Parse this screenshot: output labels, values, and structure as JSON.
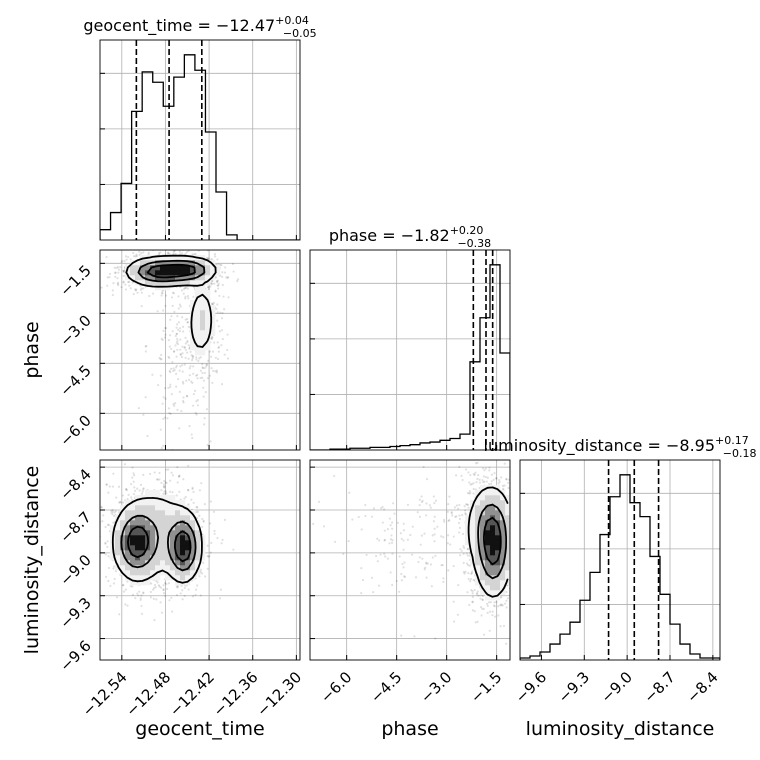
{
  "chart_data": [
    {
      "type": "corner",
      "parameters": [
        "geocent_time",
        "phase",
        "luminosity_distance"
      ],
      "titles": [
        {
          "param": "geocent_time",
          "text": "geocent_time = −12.47",
          "plus": "+0.04",
          "minus": "−0.05"
        },
        {
          "param": "phase",
          "text": "phase = −1.82",
          "plus": "+0.20",
          "minus": "−0.38"
        },
        {
          "param": "luminosity_distance",
          "text": "luminosity_distance = −8.95",
          "plus": "+0.17",
          "minus": "−0.18"
        }
      ],
      "xlabels": [
        "geocent_time",
        "phase",
        "luminosity_distance"
      ],
      "ylabels": [
        "",
        "phase",
        "luminosity_distance"
      ],
      "ranges": {
        "geocent_time": [
          -12.57,
          -12.295
        ],
        "phase": [
          -7.1,
          -1.1
        ],
        "luminosity_distance": [
          -9.75,
          -8.35
        ]
      },
      "ticks": {
        "geocent_time": [
          -12.54,
          -12.48,
          -12.42,
          -12.36,
          -12.3
        ],
        "phase": [
          -6.0,
          -4.5,
          -3.0,
          -1.5
        ],
        "luminosity_distance": [
          -9.6,
          -9.3,
          -9.0,
          -8.7,
          -8.4
        ]
      },
      "tick_labels": {
        "geocent_time": [
          "−12.54",
          "−12.48",
          "−12.42",
          "−12.36",
          "−12.30"
        ],
        "phase": [
          "−6.0",
          "−4.5",
          "−3.0",
          "−1.5"
        ],
        "luminosity_distance": [
          "−9.6",
          "−9.3",
          "−9.0",
          "−8.7",
          "−8.4"
        ]
      },
      "quantiles": {
        "geocent_time": [
          -12.52,
          -12.475,
          -12.43
        ],
        "phase": [
          -2.2,
          -1.82,
          -1.62
        ],
        "luminosity_distance": [
          -9.13,
          -8.95,
          -8.78
        ]
      },
      "histograms": {
        "geocent_time": {
          "bin_edges": [
            -12.57,
            -12.5555,
            -12.541,
            -12.5265,
            -12.512,
            -12.4975,
            -12.483,
            -12.4685,
            -12.454,
            -12.4395,
            -12.425,
            -12.4105,
            -12.396,
            -12.3815,
            -12.367,
            -12.3525,
            -12.338,
            -12.3235,
            -12.309,
            -12.2945,
            -12.28
          ],
          "counts": [
            6,
            16,
            33,
            75,
            98,
            92,
            78,
            95,
            108,
            99,
            63,
            28,
            3,
            0,
            0,
            0,
            0,
            0,
            0,
            0
          ]
        },
        "phase": {
          "bin_edges": [
            -7.1,
            -6.8,
            -6.5,
            -6.2,
            -5.9,
            -5.6,
            -5.3,
            -5.0,
            -4.7,
            -4.4,
            -4.1,
            -3.8,
            -3.5,
            -3.2,
            -2.9,
            -2.6,
            -2.3,
            -2.0,
            -1.7,
            -1.4,
            -1.1
          ],
          "counts": [
            0,
            0,
            1,
            1,
            2,
            2,
            3,
            3,
            4,
            5,
            6,
            8,
            9,
            11,
            13,
            18,
            100,
            150,
            210,
            110
          ]
        },
        "luminosity_distance": {
          "bin_edges": [
            -9.75,
            -9.68,
            -9.61,
            -9.54,
            -9.47,
            -9.4,
            -9.33,
            -9.26,
            -9.19,
            -9.12,
            -9.05,
            -8.98,
            -8.91,
            -8.84,
            -8.77,
            -8.7,
            -8.63,
            -8.56,
            -8.49,
            -8.42,
            -8.35
          ],
          "counts": [
            1,
            2,
            4,
            8,
            13,
            19,
            30,
            44,
            63,
            82,
            93,
            79,
            72,
            52,
            33,
            18,
            8,
            3,
            1,
            1
          ]
        }
      },
      "density_panels": [
        {
          "x": "geocent_time",
          "y": "phase",
          "blobs": [
            {
              "cx": -12.49,
              "cy": -1.75,
              "sx": 0.022,
              "sy": 0.22,
              "w": 1.0
            },
            {
              "cx": -12.45,
              "cy": -1.7,
              "sx": 0.02,
              "sy": 0.2,
              "w": 0.9
            },
            {
              "cx": -12.43,
              "cy": -3.2,
              "sx": 0.012,
              "sy": 0.7,
              "w": 0.25
            },
            {
              "cx": -12.46,
              "cy": -4.6,
              "sx": 0.018,
              "sy": 0.9,
              "w": 0.07
            }
          ]
        },
        {
          "x": "geocent_time",
          "y": "luminosity_distance",
          "blobs": [
            {
              "cx": -12.52,
              "cy": -8.93,
              "sx": 0.016,
              "sy": 0.13,
              "w": 1.0
            },
            {
              "cx": -12.455,
              "cy": -8.96,
              "sx": 0.012,
              "sy": 0.12,
              "w": 1.1
            },
            {
              "cx": -12.49,
              "cy": -8.85,
              "sx": 0.025,
              "sy": 0.18,
              "w": 0.3
            }
          ]
        },
        {
          "x": "phase",
          "y": "luminosity_distance",
          "blobs": [
            {
              "cx": -1.6,
              "cy": -8.98,
              "sx": 0.28,
              "sy": 0.17,
              "w": 1.0
            },
            {
              "cx": -1.7,
              "cy": -8.8,
              "sx": 0.35,
              "sy": 0.15,
              "w": 0.55
            },
            {
              "cx": -3.5,
              "cy": -8.9,
              "sx": 1.1,
              "sy": 0.2,
              "w": 0.06
            }
          ]
        }
      ]
    }
  ]
}
